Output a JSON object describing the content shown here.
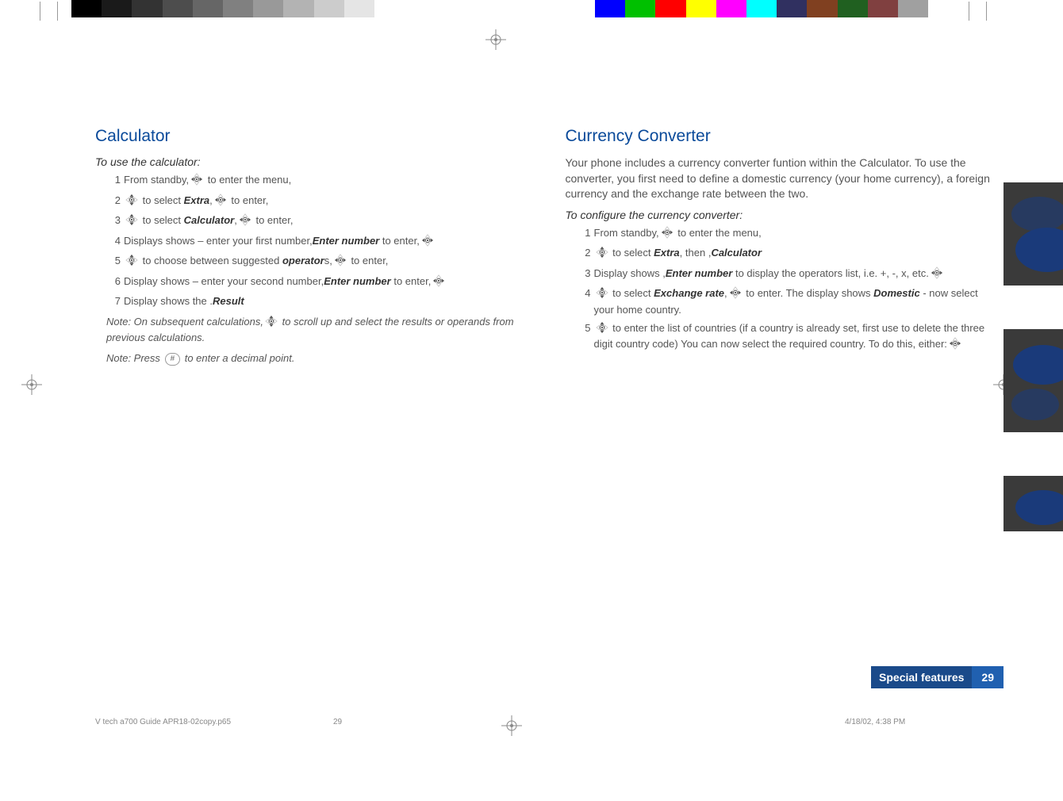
{
  "top_gray_swatches": [
    "#000000",
    "#1a1a1a",
    "#333333",
    "#4d4d4d",
    "#666666",
    "#808080",
    "#999999",
    "#b3b3b3",
    "#cccccc",
    "#e5e5e5",
    "#ffffff"
  ],
  "top_color_swatches": [
    "#0000ff",
    "#00c000",
    "#ff0000",
    "#ffff00",
    "#ff00ff",
    "#00ffff",
    "#303060",
    "#804020",
    "#206020",
    "#804040",
    "#a0a0a0"
  ],
  "calc": {
    "title": "Calculator",
    "subtitle": "To use the calculator:",
    "items": [
      {
        "n": "1",
        "pre": "From standby,",
        "icon": "lr",
        "post": " to enter the menu,"
      },
      {
        "n": "2",
        "pre": "",
        "icon": "ud",
        "post": " to select ",
        "bold": "Extra",
        "tail": ",",
        "icon2": "lr",
        "tail2": " to enter,"
      },
      {
        "n": "3",
        "pre": "",
        "icon": "ud",
        "post": " to select ",
        "bold": "Calculator",
        "tail": ",",
        "icon2": "lr",
        "tail2": " to enter,"
      },
      {
        "n": "4",
        "pre": "Displays shows ",
        "bold": "Enter number",
        "post": " – enter your first number,",
        "icon": "lr",
        "tail": " to enter,"
      },
      {
        "n": "5",
        "pre": "",
        "icon": "ud",
        "post": " to choose between suggested ",
        "bold": "operator",
        "tail": "s,",
        "icon2": "lr",
        "tail2": " to enter,"
      },
      {
        "n": "6",
        "pre": "Display shows ",
        "bold": "Enter number",
        "post": " – enter your second number,",
        "icon": "lr",
        "tail": " to enter,"
      },
      {
        "n": "7",
        "pre": "Display shows the ",
        "bold": "Result",
        "post": "."
      }
    ],
    "note1a": "Note: On subsequent calculations,",
    "note1b": " to scroll up and select the results or operands from previous calculations.",
    "note2a": "Note: Press ",
    "note2b": " to enter a decimal point.",
    "hash": "#"
  },
  "conv": {
    "title": "Currency Converter",
    "intro": "Your phone includes a currency converter funtion within the Calculator. To use the converter, you first need to define a domestic currency (your home currency), a foreign currency and the exchange rate between the two.",
    "subtitle": "To configure the currency converter:",
    "items": [
      {
        "n": "1",
        "pre": "From standby,",
        "icon": "lr",
        "post": " to enter the menu,"
      },
      {
        "n": "2",
        "pre": "",
        "icon": "ud",
        "post": " to select ",
        "bold": "Extra",
        "tail": ", then ",
        "bold2": "Calculator",
        "tail2": ","
      },
      {
        "n": "3",
        "pre": "Display shows ",
        "bold": "Enter number",
        "post": ",",
        "icon": "lr",
        "tail": " to display the operators list, i.e. +, -, x, etc."
      },
      {
        "n": "4",
        "pre": "",
        "icon": "ud",
        "post": " to select ",
        "bold": "Exchange rate",
        "tail": ",",
        "icon2": "lr",
        "tail2": " to enter. The display shows ",
        "bold2": "Domestic",
        "tail3": " - now select your home country."
      },
      {
        "n": "5",
        "pre": "",
        "icon": "ud",
        "post": " to enter the list of countries (if a country is already set, first use ",
        "icon2": "lr",
        "tail": " to delete the three digit country code) You can now select the required country. To do this, either:"
      }
    ]
  },
  "footer_text": "Special features",
  "footer_num": "29",
  "meta_file": "V tech a700 Guide APR18-02copy.p65",
  "meta_page": "29",
  "meta_date": "4/18/02, 4:38 PM"
}
